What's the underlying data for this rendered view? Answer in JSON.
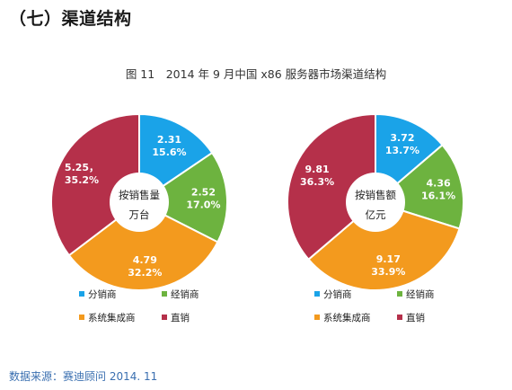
{
  "section_title": "（七）渠道结构",
  "figure_caption": "图 11　2014 年 9 月中国 x86 服务器市场渠道结构",
  "source_note": "数据来源：赛迪顾问 2014. 11",
  "colors": {
    "分销商": "#1aa3e8",
    "经销商": "#6db33f",
    "系统集成商": "#f39a1e",
    "直销": "#b5304a"
  },
  "chart_data": [
    {
      "type": "pie",
      "title": "",
      "center_label": [
        "按销售量",
        "万台"
      ],
      "slices": [
        {
          "name": "分销商",
          "value": 2.31,
          "percent": "15.6%",
          "value_label": "2.31"
        },
        {
          "name": "经销商",
          "value": 2.52,
          "percent": "17.0%",
          "value_label": "2.52"
        },
        {
          "name": "系统集成商",
          "value": 4.79,
          "percent": "32.2%",
          "value_label": "4.79"
        },
        {
          "name": "直销",
          "value": 5.25,
          "percent": "35.2%",
          "value_label": "5.25，"
        }
      ],
      "legend": [
        "分销商",
        "经销商",
        "系统集成商",
        "直销"
      ],
      "legend_position": "bottom"
    },
    {
      "type": "pie",
      "title": "",
      "center_label": [
        "按销售额",
        "亿元"
      ],
      "slices": [
        {
          "name": "分销商",
          "value": 3.72,
          "percent": "13.7%",
          "value_label": "3.72"
        },
        {
          "name": "经销商",
          "value": 4.36,
          "percent": "16.1%",
          "value_label": "4.36"
        },
        {
          "name": "系统集成商",
          "value": 9.17,
          "percent": "33.9%",
          "value_label": "9.17"
        },
        {
          "name": "直销",
          "value": 9.81,
          "percent": "36.3%",
          "value_label": "9.81"
        }
      ],
      "legend": [
        "分销商",
        "经销商",
        "系统集成商",
        "直销"
      ],
      "legend_position": "bottom"
    }
  ]
}
